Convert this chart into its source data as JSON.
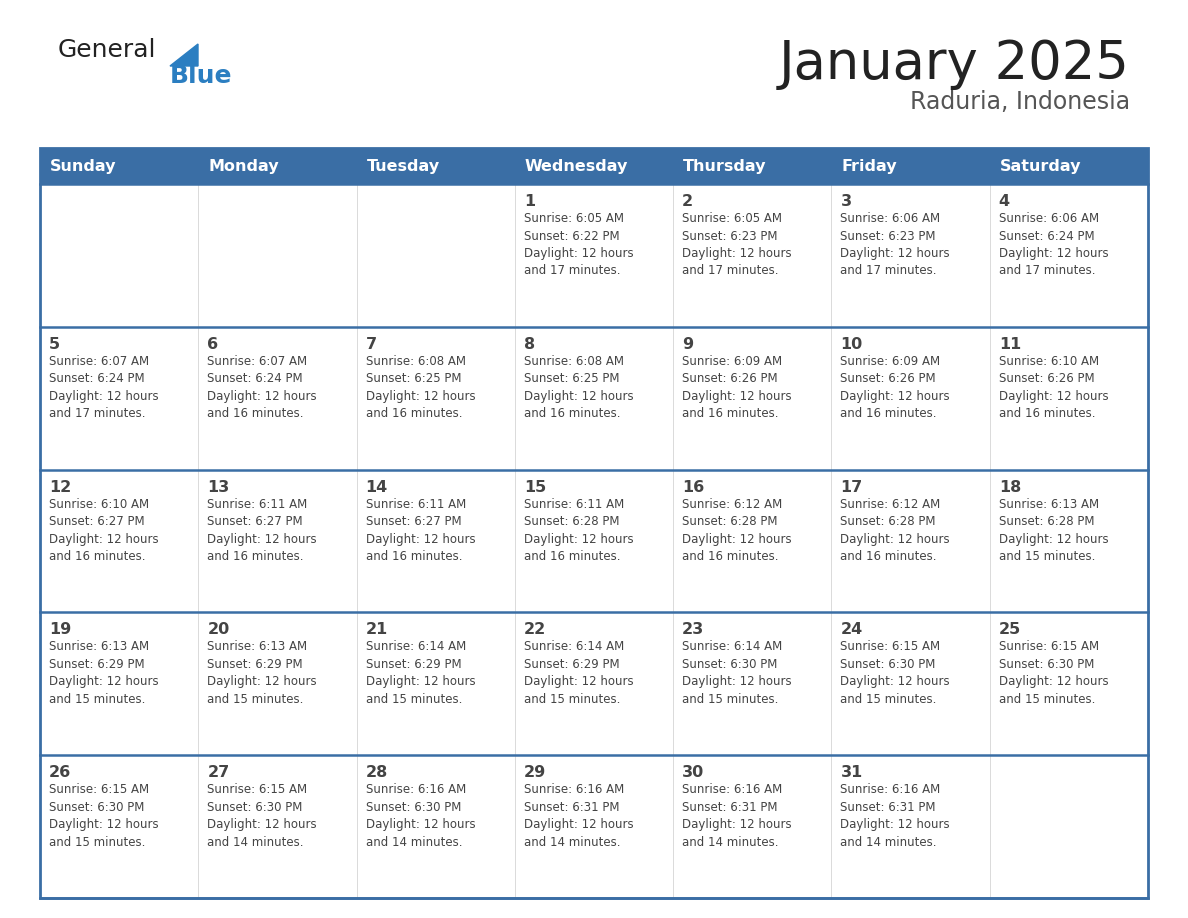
{
  "title": "January 2025",
  "subtitle": "Raduria, Indonesia",
  "header_color": "#3A6EA5",
  "header_text_color": "#FFFFFF",
  "days_of_week": [
    "Sunday",
    "Monday",
    "Tuesday",
    "Wednesday",
    "Thursday",
    "Friday",
    "Saturday"
  ],
  "weeks": [
    [
      {
        "day": "",
        "info": ""
      },
      {
        "day": "",
        "info": ""
      },
      {
        "day": "",
        "info": ""
      },
      {
        "day": "1",
        "info": "Sunrise: 6:05 AM\nSunset: 6:22 PM\nDaylight: 12 hours\nand 17 minutes."
      },
      {
        "day": "2",
        "info": "Sunrise: 6:05 AM\nSunset: 6:23 PM\nDaylight: 12 hours\nand 17 minutes."
      },
      {
        "day": "3",
        "info": "Sunrise: 6:06 AM\nSunset: 6:23 PM\nDaylight: 12 hours\nand 17 minutes."
      },
      {
        "day": "4",
        "info": "Sunrise: 6:06 AM\nSunset: 6:24 PM\nDaylight: 12 hours\nand 17 minutes."
      }
    ],
    [
      {
        "day": "5",
        "info": "Sunrise: 6:07 AM\nSunset: 6:24 PM\nDaylight: 12 hours\nand 17 minutes."
      },
      {
        "day": "6",
        "info": "Sunrise: 6:07 AM\nSunset: 6:24 PM\nDaylight: 12 hours\nand 16 minutes."
      },
      {
        "day": "7",
        "info": "Sunrise: 6:08 AM\nSunset: 6:25 PM\nDaylight: 12 hours\nand 16 minutes."
      },
      {
        "day": "8",
        "info": "Sunrise: 6:08 AM\nSunset: 6:25 PM\nDaylight: 12 hours\nand 16 minutes."
      },
      {
        "day": "9",
        "info": "Sunrise: 6:09 AM\nSunset: 6:26 PM\nDaylight: 12 hours\nand 16 minutes."
      },
      {
        "day": "10",
        "info": "Sunrise: 6:09 AM\nSunset: 6:26 PM\nDaylight: 12 hours\nand 16 minutes."
      },
      {
        "day": "11",
        "info": "Sunrise: 6:10 AM\nSunset: 6:26 PM\nDaylight: 12 hours\nand 16 minutes."
      }
    ],
    [
      {
        "day": "12",
        "info": "Sunrise: 6:10 AM\nSunset: 6:27 PM\nDaylight: 12 hours\nand 16 minutes."
      },
      {
        "day": "13",
        "info": "Sunrise: 6:11 AM\nSunset: 6:27 PM\nDaylight: 12 hours\nand 16 minutes."
      },
      {
        "day": "14",
        "info": "Sunrise: 6:11 AM\nSunset: 6:27 PM\nDaylight: 12 hours\nand 16 minutes."
      },
      {
        "day": "15",
        "info": "Sunrise: 6:11 AM\nSunset: 6:28 PM\nDaylight: 12 hours\nand 16 minutes."
      },
      {
        "day": "16",
        "info": "Sunrise: 6:12 AM\nSunset: 6:28 PM\nDaylight: 12 hours\nand 16 minutes."
      },
      {
        "day": "17",
        "info": "Sunrise: 6:12 AM\nSunset: 6:28 PM\nDaylight: 12 hours\nand 16 minutes."
      },
      {
        "day": "18",
        "info": "Sunrise: 6:13 AM\nSunset: 6:28 PM\nDaylight: 12 hours\nand 15 minutes."
      }
    ],
    [
      {
        "day": "19",
        "info": "Sunrise: 6:13 AM\nSunset: 6:29 PM\nDaylight: 12 hours\nand 15 minutes."
      },
      {
        "day": "20",
        "info": "Sunrise: 6:13 AM\nSunset: 6:29 PM\nDaylight: 12 hours\nand 15 minutes."
      },
      {
        "day": "21",
        "info": "Sunrise: 6:14 AM\nSunset: 6:29 PM\nDaylight: 12 hours\nand 15 minutes."
      },
      {
        "day": "22",
        "info": "Sunrise: 6:14 AM\nSunset: 6:29 PM\nDaylight: 12 hours\nand 15 minutes."
      },
      {
        "day": "23",
        "info": "Sunrise: 6:14 AM\nSunset: 6:30 PM\nDaylight: 12 hours\nand 15 minutes."
      },
      {
        "day": "24",
        "info": "Sunrise: 6:15 AM\nSunset: 6:30 PM\nDaylight: 12 hours\nand 15 minutes."
      },
      {
        "day": "25",
        "info": "Sunrise: 6:15 AM\nSunset: 6:30 PM\nDaylight: 12 hours\nand 15 minutes."
      }
    ],
    [
      {
        "day": "26",
        "info": "Sunrise: 6:15 AM\nSunset: 6:30 PM\nDaylight: 12 hours\nand 15 minutes."
      },
      {
        "day": "27",
        "info": "Sunrise: 6:15 AM\nSunset: 6:30 PM\nDaylight: 12 hours\nand 14 minutes."
      },
      {
        "day": "28",
        "info": "Sunrise: 6:16 AM\nSunset: 6:30 PM\nDaylight: 12 hours\nand 14 minutes."
      },
      {
        "day": "29",
        "info": "Sunrise: 6:16 AM\nSunset: 6:31 PM\nDaylight: 12 hours\nand 14 minutes."
      },
      {
        "day": "30",
        "info": "Sunrise: 6:16 AM\nSunset: 6:31 PM\nDaylight: 12 hours\nand 14 minutes."
      },
      {
        "day": "31",
        "info": "Sunrise: 6:16 AM\nSunset: 6:31 PM\nDaylight: 12 hours\nand 14 minutes."
      },
      {
        "day": "",
        "info": ""
      }
    ]
  ],
  "logo_text_general": "General",
  "logo_text_blue": "Blue",
  "logo_triangle_color": "#2B7EC1",
  "logo_general_color": "#222222",
  "logo_blue_color": "#2B7EC1",
  "cell_bg_white": "#FFFFFF",
  "border_color": "#3A6EA5",
  "text_color": "#444444",
  "day_num_color": "#444444",
  "title_color": "#222222",
  "subtitle_color": "#555555"
}
